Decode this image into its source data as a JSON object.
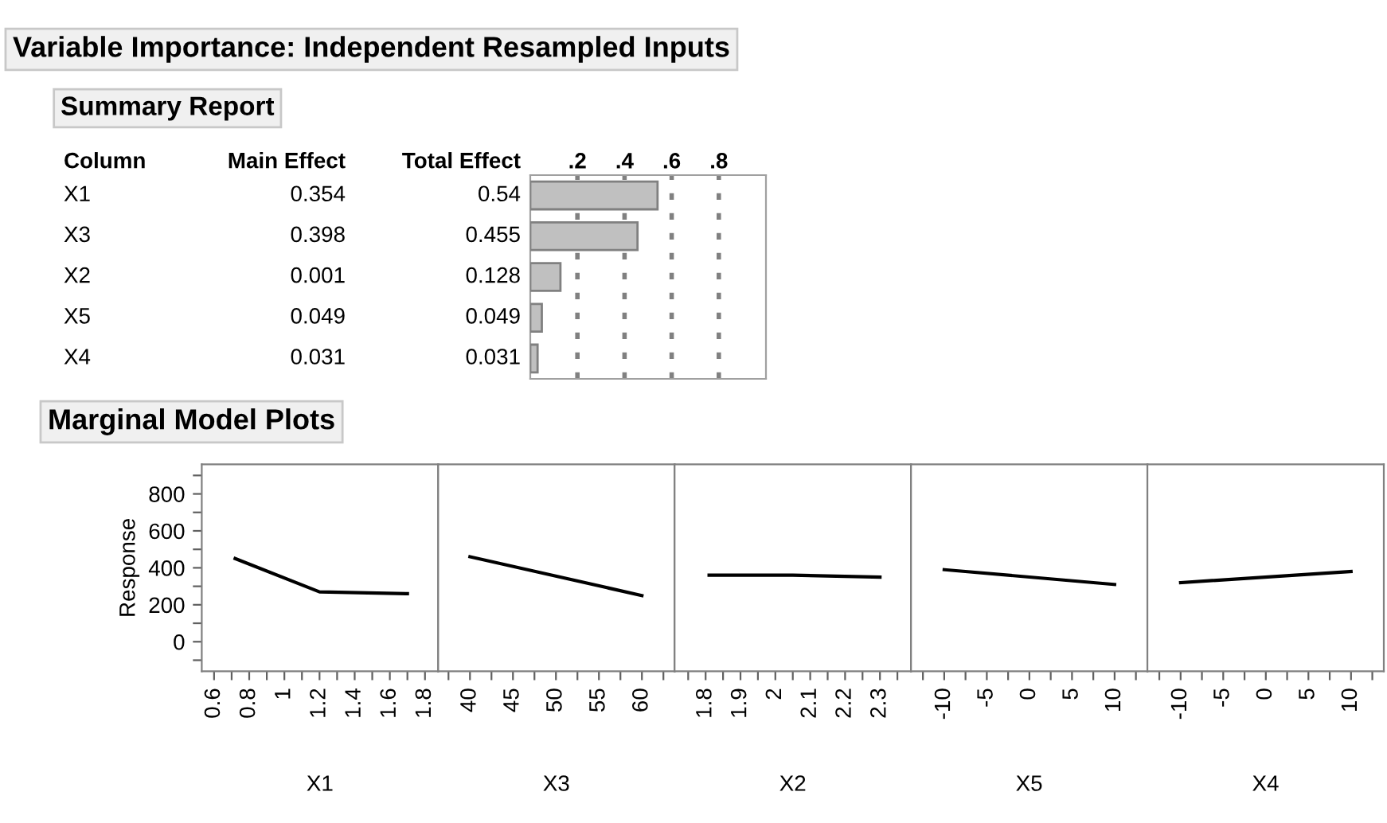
{
  "chart_data": [
    {
      "type": "other",
      "title": "Variable Importance: Independent Resampled Inputs",
      "subtitle": "Summary Report",
      "ylabel": "Column",
      "categories": [
        "X1",
        "X3",
        "X2",
        "X5",
        "X4"
      ],
      "series": [
        {
          "name": "Main Effect",
          "values": [
            0.354,
            0.398,
            0.001,
            0.049,
            0.031
          ]
        }
      ],
      "data_labels": true
    },
    {
      "type": "bar",
      "orientation": "horizontal",
      "categories": [
        null,
        null,
        null,
        null,
        null
      ],
      "series": [
        {
          "name": "Total Effect",
          "color": "#c0c0c0",
          "values": [
            0.54,
            0.455,
            0.128,
            0.049,
            0.031
          ]
        }
      ],
      "data_labels": true,
      "xlim": [
        0,
        1
      ],
      "xticks": [
        {
          "value": 0.2,
          "label": ".2"
        },
        {
          "value": 0.4,
          "label": ".4"
        },
        {
          "value": 0.6,
          "label": ".6"
        },
        {
          "value": 0.8,
          "label": ".8"
        }
      ],
      "grid": "x",
      "tick_labels": "x"
    },
    {
      "type": "line",
      "title": "Marginal Model Plots",
      "xlabel": "X1",
      "ylabel": "Response",
      "x": [
        0.72,
        1.2,
        1.7
      ],
      "values": [
        450,
        270,
        260
      ],
      "color": "#000000",
      "xlim": [
        0.53,
        1.875
      ],
      "ylim": [
        -160,
        960
      ],
      "xticks": [
        0.6,
        0.8,
        1,
        1.2,
        1.4,
        1.6,
        1.8,
        {
          "value": 0.7,
          "label": null
        },
        {
          "value": 0.9,
          "label": null
        },
        {
          "value": 1.1,
          "label": null
        },
        {
          "value": 1.3,
          "label": null
        },
        {
          "value": 1.5,
          "label": null
        },
        {
          "value": 1.7,
          "label": null
        }
      ],
      "yticks": [
        0,
        200,
        400,
        600,
        800,
        {
          "value": -100,
          "label": null
        },
        {
          "value": 100,
          "label": null
        },
        {
          "value": 300,
          "label": null
        },
        {
          "value": 500,
          "label": null
        },
        {
          "value": 700,
          "label": null
        },
        {
          "value": 900,
          "label": null
        }
      ]
    },
    {
      "type": "line",
      "xlabel": "X3",
      "x": [
        40,
        60
      ],
      "values": [
        460,
        250
      ],
      "color": "#000000",
      "xlim": [
        36.3,
        63.8
      ],
      "ylim": [
        -160,
        960
      ],
      "tick_labels": "x",
      "xticks": [
        40,
        45,
        50,
        55,
        60,
        {
          "value": 37.5,
          "label": null
        },
        {
          "value": 42.5,
          "label": null
        },
        {
          "value": 47.5,
          "label": null
        },
        {
          "value": 52.5,
          "label": null
        },
        {
          "value": 57.5,
          "label": null
        },
        {
          "value": 62.5,
          "label": null
        }
      ]
    },
    {
      "type": "line",
      "xlabel": "X2",
      "x": [
        1.81,
        2.05,
        2.3
      ],
      "values": [
        360,
        360,
        350
      ],
      "color": "#000000",
      "xlim": [
        1.711,
        2.389
      ],
      "ylim": [
        -160,
        960
      ],
      "tick_labels": "x",
      "xticks": [
        1.8,
        1.9,
        2,
        2.1,
        2.2,
        2.3,
        {
          "value": 1.75,
          "label": null
        },
        {
          "value": 1.85,
          "label": null
        },
        {
          "value": 1.95,
          "label": null
        },
        {
          "value": 2.05,
          "label": null
        },
        {
          "value": 2.15,
          "label": null
        },
        {
          "value": 2.25,
          "label": null
        },
        {
          "value": 2.35,
          "label": null
        }
      ]
    },
    {
      "type": "line",
      "xlabel": "X5",
      "x": [
        -10,
        10
      ],
      "values": [
        390,
        310
      ],
      "color": "#000000",
      "xlim": [
        -13.9,
        13.85
      ],
      "ylim": [
        -160,
        960
      ],
      "tick_labels": "x",
      "xticks": [
        -10,
        -5,
        0,
        5,
        10,
        {
          "value": -12.5,
          "label": null
        },
        {
          "value": -7.5,
          "label": null
        },
        {
          "value": -2.5,
          "label": null
        },
        {
          "value": 2.5,
          "label": null
        },
        {
          "value": 7.5,
          "label": null
        },
        {
          "value": 12.5,
          "label": null
        }
      ]
    },
    {
      "type": "line",
      "xlabel": "X4",
      "x": [
        -10,
        10
      ],
      "values": [
        320,
        380
      ],
      "color": "#000000",
      "xlim": [
        -13.9,
        13.85
      ],
      "ylim": [
        -160,
        960
      ],
      "tick_labels": "x",
      "xticks": [
        -10,
        -5,
        0,
        5,
        10,
        {
          "value": -12.5,
          "label": null
        },
        {
          "value": -7.5,
          "label": null
        },
        {
          "value": -2.5,
          "label": null
        },
        {
          "value": 2.5,
          "label": null
        },
        {
          "value": 7.5,
          "label": null
        },
        {
          "value": 12.5,
          "label": null
        }
      ]
    }
  ]
}
